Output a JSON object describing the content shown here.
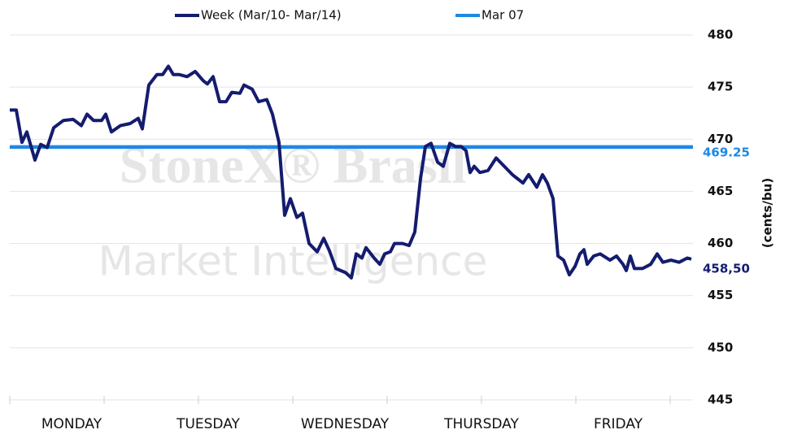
{
  "chart_data": {
    "type": "line",
    "watermark": [
      "StoneX® Brasil",
      "Market Intelligence"
    ],
    "y_axis_label": "(cents/bu)",
    "day_labels": [
      "MONDAY",
      "TUESDAY",
      "WEDNESDAY",
      "THURSDAY",
      "FRIDAY"
    ],
    "xlim": [
      0,
      840
    ],
    "xticks": [
      0,
      116,
      232,
      348,
      464,
      580,
      696,
      812
    ],
    "ylim": [
      445,
      480
    ],
    "yticks": [
      445,
      450,
      455,
      460,
      465,
      470,
      475,
      480
    ],
    "grid": true,
    "series": [
      {
        "name": "Week (Mar/10- Mar/14)",
        "color": "#141c6f",
        "x": [
          0,
          8,
          15,
          21,
          31,
          38,
          46,
          54,
          66,
          78,
          88,
          95,
          103,
          113,
          118,
          125,
          136,
          148,
          158,
          163,
          171,
          181,
          188,
          195,
          201,
          208,
          218,
          228,
          238,
          243,
          250,
          258,
          266,
          273,
          283,
          288,
          298,
          306,
          316,
          323,
          331,
          338,
          345,
          353,
          360,
          368,
          378,
          386,
          393,
          401,
          413,
          420,
          426,
          433,
          438,
          448,
          455,
          461,
          468,
          473,
          483,
          491,
          498,
          505,
          511,
          518,
          526,
          533,
          541,
          548,
          555,
          561,
          566,
          571,
          578,
          588,
          598,
          608,
          618,
          631,
          638,
          648,
          655,
          661,
          668,
          674,
          681,
          688,
          695,
          701,
          706,
          710,
          718,
          726,
          738,
          746,
          754,
          758,
          763,
          768,
          778,
          788,
          796,
          803,
          813,
          823,
          833,
          838
        ],
        "values": [
          472.8,
          472.8,
          469.7,
          470.7,
          468.0,
          469.5,
          469.2,
          471.1,
          471.8,
          471.9,
          471.3,
          472.4,
          471.8,
          471.8,
          472.4,
          470.7,
          471.3,
          471.5,
          472.0,
          471.0,
          475.2,
          476.2,
          476.2,
          477.0,
          476.2,
          476.2,
          476.0,
          476.5,
          475.6,
          475.3,
          476.0,
          473.6,
          473.6,
          474.5,
          474.4,
          475.2,
          474.8,
          473.6,
          473.8,
          472.4,
          469.7,
          462.7,
          464.3,
          462.5,
          462.9,
          460.0,
          459.2,
          460.5,
          459.3,
          457.6,
          457.2,
          456.7,
          459.0,
          458.6,
          459.6,
          458.6,
          458.0,
          459.0,
          459.2,
          460.0,
          460.0,
          459.8,
          461.1,
          466.2,
          469.3,
          469.6,
          467.8,
          467.4,
          469.6,
          469.3,
          469.3,
          468.9,
          466.8,
          467.4,
          466.8,
          467.0,
          468.2,
          467.4,
          466.6,
          465.8,
          466.6,
          465.4,
          466.6,
          465.8,
          464.3,
          458.8,
          458.4,
          457.0,
          457.8,
          459.0,
          459.4,
          458.0,
          458.8,
          459.0,
          458.4,
          458.8,
          458.0,
          457.4,
          458.8,
          457.6,
          457.6,
          458.0,
          459.0,
          458.2,
          458.4,
          458.2,
          458.6,
          458.5
        ],
        "end_label": {
          "value": 458.5,
          "label": "458,50"
        }
      },
      {
        "name": "Mar 07",
        "color": "#1e88e5",
        "x": [
          0,
          840
        ],
        "values": [
          469.25,
          469.25
        ],
        "end_label": 469.25
      }
    ]
  }
}
